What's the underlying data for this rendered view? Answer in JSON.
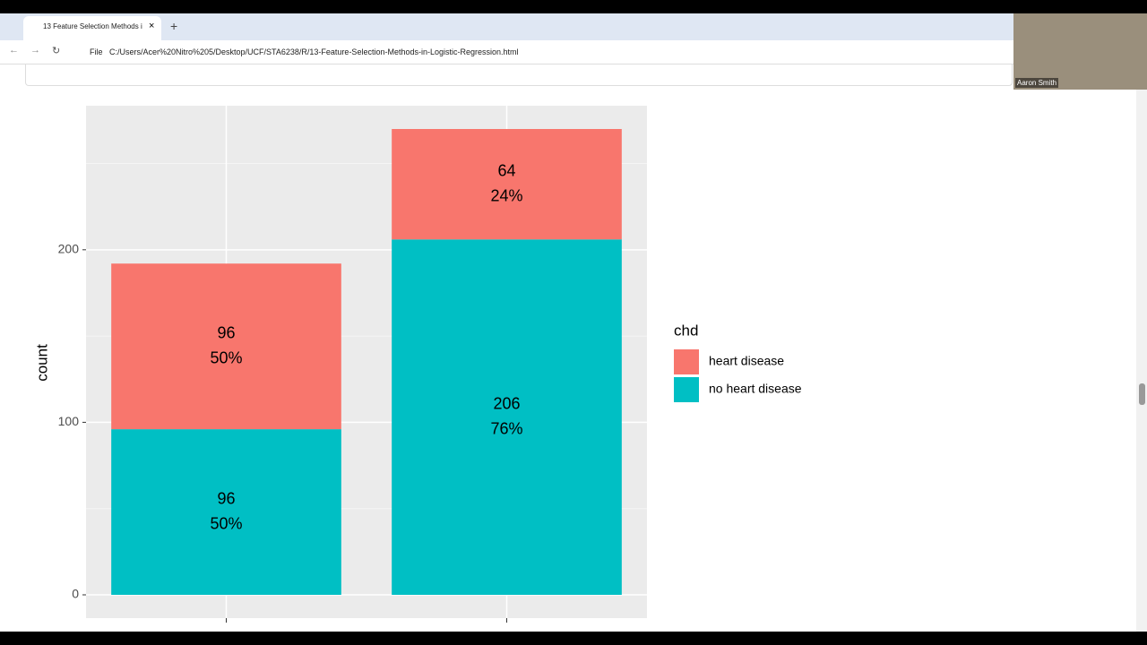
{
  "browser": {
    "tab_title": "13 Feature Selection Methods i",
    "address_label": "File",
    "url": "C:/Users/Acer%20Nitro%205/Desktop/UCF/STA6238/R/13-Feature-Selection-Methods-in-Logistic-Regression.html",
    "webcam_name": "Aaron Smith"
  },
  "chart_data": {
    "type": "stacked_bar",
    "y_label": "count",
    "legend_title": "chd",
    "categories": [
      null,
      null
    ],
    "series": [
      {
        "name": "heart disease",
        "color": "#f8766d",
        "values": [
          96,
          64
        ],
        "percent_labels": [
          "50%",
          "24%"
        ]
      },
      {
        "name": "no heart disease",
        "color": "#00bfc4",
        "values": [
          96,
          206
        ],
        "percent_labels": [
          "50%",
          "76%"
        ]
      }
    ],
    "ylim": [
      -13.5,
      283.5
    ],
    "yticks": [
      0,
      100,
      200
    ],
    "grid": true
  }
}
